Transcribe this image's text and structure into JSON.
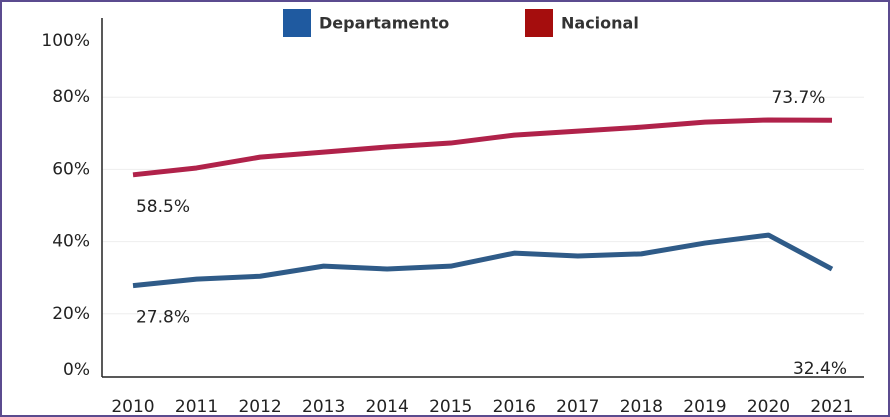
{
  "chart_data": {
    "type": "line",
    "categories": [
      "2010",
      "2011",
      "2012",
      "2013",
      "2014",
      "2015",
      "2016",
      "2017",
      "2018",
      "2019",
      "2020",
      "2021"
    ],
    "series": [
      {
        "name": "Departamento",
        "color": "#2f5b88",
        "legend_color": "#1f5aa0",
        "values": [
          27.8,
          29.6,
          30.4,
          33.2,
          32.4,
          33.2,
          36.8,
          36.0,
          36.6,
          39.6,
          41.8,
          32.4
        ],
        "value_labels": [
          "27.8%",
          null,
          null,
          null,
          null,
          null,
          null,
          null,
          null,
          null,
          null,
          "32.4%"
        ]
      },
      {
        "name": "Nacional",
        "color": "#b0224a",
        "legend_color": "#a50d0d",
        "values": [
          58.5,
          60.4,
          63.4,
          64.8,
          66.2,
          67.3,
          69.5,
          70.6,
          71.7,
          73.1,
          73.7,
          73.6
        ],
        "value_labels": [
          "58.5%",
          null,
          null,
          null,
          null,
          null,
          null,
          null,
          null,
          null,
          "73.7%",
          null
        ]
      }
    ],
    "ylim": [
      0,
      100
    ],
    "yticks": [
      {
        "value": 0,
        "label": "0%"
      },
      {
        "value": 20,
        "label": "20%"
      },
      {
        "value": 40,
        "label": "40%"
      },
      {
        "value": 60,
        "label": "60%"
      },
      {
        "value": 80,
        "label": "80%"
      },
      {
        "value": 100,
        "label": "100%"
      }
    ],
    "grid": true
  }
}
